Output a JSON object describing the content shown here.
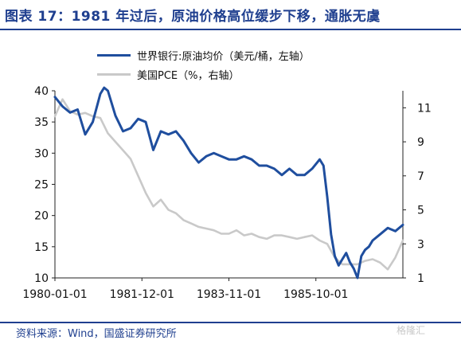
{
  "title": "图表 17：1981 年过后，原油价格高位缓步下移，通胀无虞",
  "source": "资料来源：Wind，国盛证券研究所",
  "watermark": "格隆汇",
  "colors": {
    "oil": "#1f4e9e",
    "pce": "#c9c9c9",
    "accent": "#1f3f8f"
  },
  "chart_data": {
    "type": "line",
    "title": "图表 17：1981 年过后，原油价格高位缓步下移，通胀无虞",
    "x_tick_labels": [
      "1980-01-01",
      "1981-12-01",
      "1983-11-01",
      "1985-10-01"
    ],
    "x_start": "1980-01",
    "x_end": "1987-09",
    "y_left": {
      "range": [
        10,
        40
      ],
      "ticks": [
        10,
        15,
        20,
        25,
        30,
        35,
        40
      ]
    },
    "y_right": {
      "range": [
        1,
        12
      ],
      "ticks": [
        1,
        3,
        5,
        7,
        9,
        11
      ]
    },
    "legend_position": "top",
    "grid": false,
    "series": [
      {
        "name": "世界银行:原油均价（美元/桶，左轴）",
        "axis": "left",
        "color": "#1f4e9e",
        "x": [
          "1980-01",
          "1980-03",
          "1980-05",
          "1980-07",
          "1980-09",
          "1980-11",
          "1981-01",
          "1981-02",
          "1981-03",
          "1981-05",
          "1981-07",
          "1981-09",
          "1981-11",
          "1982-01",
          "1982-03",
          "1982-05",
          "1982-07",
          "1982-09",
          "1982-11",
          "1983-01",
          "1983-03",
          "1983-05",
          "1983-07",
          "1983-09",
          "1983-11",
          "1984-01",
          "1984-03",
          "1984-05",
          "1984-07",
          "1984-09",
          "1984-11",
          "1985-01",
          "1985-03",
          "1985-05",
          "1985-07",
          "1985-09",
          "1985-11",
          "1985-12",
          "1986-01",
          "1986-02",
          "1986-03",
          "1986-04",
          "1986-05",
          "1986-06",
          "1986-07",
          "1986-08",
          "1986-09",
          "1986-10",
          "1986-11",
          "1986-12",
          "1987-01",
          "1987-03",
          "1987-05",
          "1987-07",
          "1987-09"
        ],
        "values": [
          39.0,
          37.5,
          36.5,
          37.0,
          33.0,
          35.0,
          39.5,
          40.5,
          40.0,
          36.0,
          33.5,
          34.0,
          35.5,
          35.0,
          30.5,
          33.5,
          33.0,
          33.5,
          32.0,
          30.0,
          28.5,
          29.5,
          30.0,
          29.5,
          29.0,
          29.0,
          29.5,
          29.0,
          28.0,
          28.0,
          27.5,
          26.5,
          27.5,
          26.5,
          26.5,
          27.5,
          29.0,
          28.0,
          23.0,
          17.0,
          13.5,
          12.0,
          13.0,
          14.0,
          12.5,
          11.5,
          10.0,
          13.5,
          14.5,
          15.0,
          16.0,
          17.0,
          18.0,
          17.5,
          18.5
        ]
      },
      {
        "name": "美国PCE（%，右轴）",
        "axis": "right",
        "color": "#c9c9c9",
        "x": [
          "1980-01",
          "1980-03",
          "1980-05",
          "1980-07",
          "1980-09",
          "1980-11",
          "1981-01",
          "1981-03",
          "1981-05",
          "1981-07",
          "1981-09",
          "1981-11",
          "1982-01",
          "1982-03",
          "1982-05",
          "1982-07",
          "1982-09",
          "1982-11",
          "1983-01",
          "1983-03",
          "1983-05",
          "1983-07",
          "1983-09",
          "1983-11",
          "1984-01",
          "1984-03",
          "1984-05",
          "1984-07",
          "1984-09",
          "1984-11",
          "1985-01",
          "1985-03",
          "1985-05",
          "1985-07",
          "1985-09",
          "1985-11",
          "1986-01",
          "1986-03",
          "1986-05",
          "1986-07",
          "1986-09",
          "1986-11",
          "1987-01",
          "1987-03",
          "1987-05",
          "1987-07",
          "1987-09"
        ],
        "values": [
          10.5,
          11.5,
          10.8,
          10.6,
          10.7,
          10.5,
          10.4,
          9.5,
          9.0,
          8.5,
          8.0,
          7.0,
          6.0,
          5.2,
          5.6,
          5.0,
          4.8,
          4.4,
          4.2,
          4.0,
          3.9,
          3.8,
          3.6,
          3.6,
          3.8,
          3.5,
          3.6,
          3.4,
          3.3,
          3.5,
          3.5,
          3.4,
          3.3,
          3.4,
          3.5,
          3.2,
          3.0,
          2.2,
          1.8,
          1.8,
          1.8,
          2.0,
          2.1,
          1.9,
          1.5,
          2.2,
          3.2
        ]
      }
    ]
  }
}
